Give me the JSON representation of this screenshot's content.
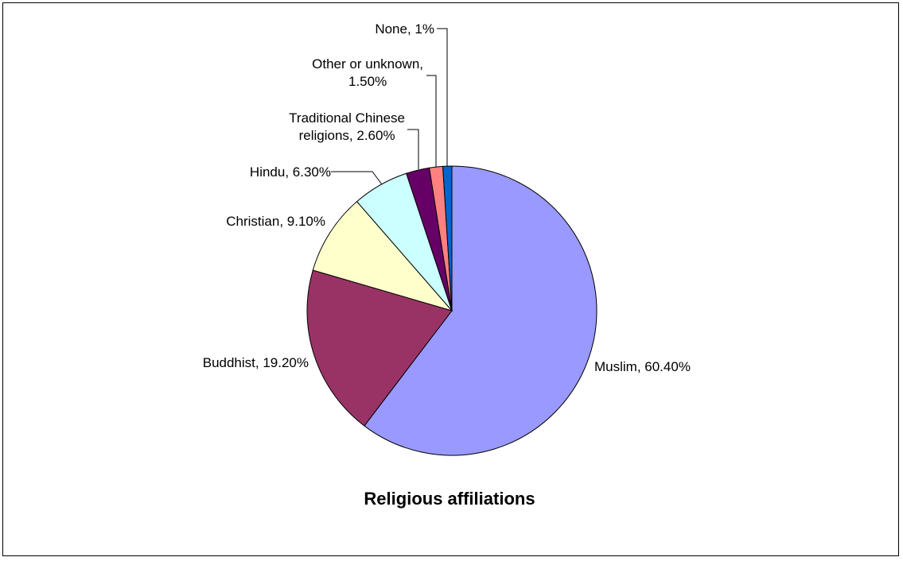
{
  "chart_data": {
    "type": "pie",
    "title": "Religious affiliations",
    "slices": [
      {
        "label": "Muslim, 60.40%",
        "name": "Muslim",
        "value": 60.4,
        "color": "#9999FF"
      },
      {
        "label": "Buddhist, 19.20%",
        "name": "Buddhist",
        "value": 19.2,
        "color": "#993366"
      },
      {
        "label": "Christian, 9.10%",
        "name": "Christian",
        "value": 9.1,
        "color": "#FFFFCC"
      },
      {
        "label": "Hindu, 6.30%",
        "name": "Hindu",
        "value": 6.3,
        "color": "#CCFFFF"
      },
      {
        "label": [
          "Traditional Chinese",
          "religions, 2.60%"
        ],
        "name": "Traditional Chinese religions",
        "value": 2.6,
        "color": "#660066"
      },
      {
        "label": [
          "Other or unknown,",
          "1.50%"
        ],
        "name": "Other or unknown",
        "value": 1.5,
        "color": "#FF8080"
      },
      {
        "label": "None, 1%",
        "name": "None",
        "value": 1.0,
        "color": "#0066CC"
      }
    ]
  }
}
